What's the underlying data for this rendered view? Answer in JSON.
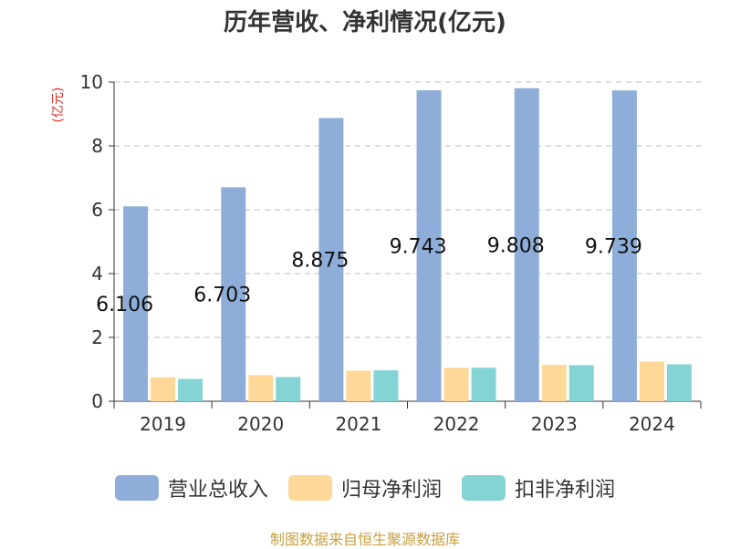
{
  "chart_data": {
    "type": "bar",
    "title": "历年营收、净利情况(亿元)",
    "ylabel": "(亿元)",
    "xlabel": "",
    "categories": [
      "2019",
      "2020",
      "2021",
      "2022",
      "2023",
      "2024"
    ],
    "ylim": [
      0,
      10
    ],
    "yticks": [
      0,
      2,
      4,
      6,
      8,
      10
    ],
    "grid": true,
    "legend_position": "bottom",
    "series": [
      {
        "name": "营业总收入",
        "color": "#8eaed9",
        "values": [
          6.106,
          6.703,
          8.875,
          9.743,
          9.808,
          9.739
        ],
        "data_labels": [
          "6.106",
          "6.703",
          "8.875",
          "9.743",
          "9.808",
          "9.739"
        ]
      },
      {
        "name": "归母净利润",
        "color": "#fdd898",
        "values": [
          0.75,
          0.82,
          0.96,
          1.05,
          1.14,
          1.24
        ]
      },
      {
        "name": "扣非净利润",
        "color": "#84d4d6",
        "values": [
          0.7,
          0.76,
          0.97,
          1.05,
          1.13,
          1.16
        ]
      }
    ]
  },
  "source_note": "制图数据来自恒生聚源数据库",
  "colors": {
    "title": "#333333",
    "axis_label": "#e0312b",
    "source": "#c8a040",
    "grid": "#bbbbbb"
  }
}
